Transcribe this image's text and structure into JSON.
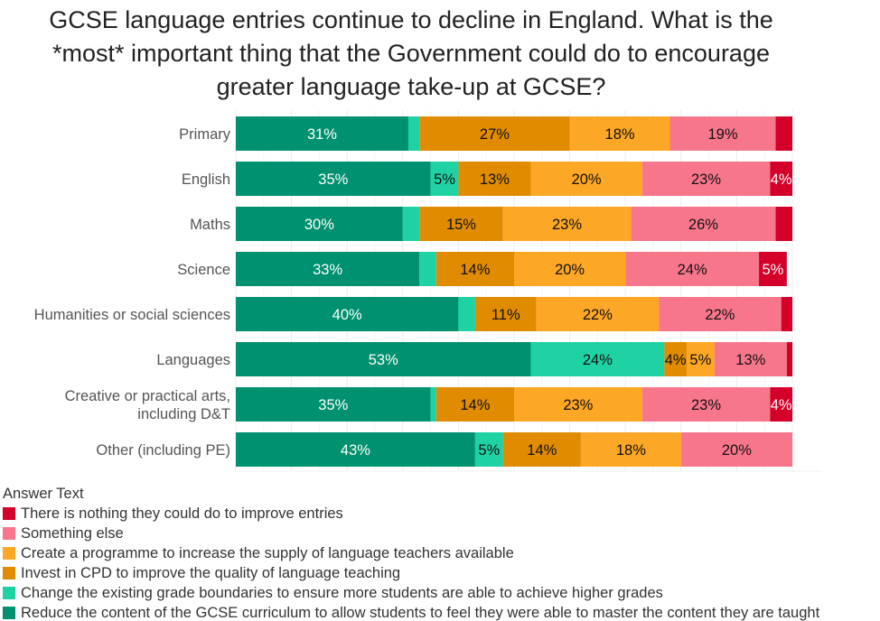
{
  "chart_data": {
    "type": "bar",
    "orientation": "horizontal",
    "stacked": true,
    "title_lines": [
      "GCSE language entries continue to decline in England. What is the",
      "*most* important thing that the Government could do to encourage",
      "greater language take-up at GCSE?"
    ],
    "xlim": [
      0,
      100
    ],
    "grid": true,
    "categories": [
      "Primary",
      "English",
      "Maths",
      "Science",
      "Humanities or social sciences",
      "Languages",
      "Creative or practical arts, including D&T",
      "Other (including PE)"
    ],
    "category_lines": [
      [
        "Primary"
      ],
      [
        "English"
      ],
      [
        "Maths"
      ],
      [
        "Science"
      ],
      [
        "Humanities or social sciences"
      ],
      [
        "Languages"
      ],
      [
        "Creative or practical arts,",
        "including D&T"
      ],
      [
        "Other (including PE)"
      ]
    ],
    "legend_title": "Answer Text",
    "legend_placement": "bottom-left",
    "series": [
      {
        "name": "Reduce the content of the GCSE curriculum to allow students to feel they were able to master the content they are taught",
        "color": "#009170",
        "label_color": "#ffffff",
        "values": [
          31,
          35,
          30,
          33,
          40,
          53,
          35,
          43
        ]
      },
      {
        "name": "Change the existing grade boundaries to ensure more students are able to achieve higher grades",
        "color": "#1fd2a4",
        "label_color": "#111111",
        "values": [
          2,
          5,
          3,
          3,
          3,
          24,
          1,
          5
        ]
      },
      {
        "name": "Invest in CPD to improve the quality of language teaching",
        "color": "#e08b00",
        "label_color": "#111111",
        "values": [
          27,
          13,
          15,
          14,
          11,
          4,
          14,
          14
        ]
      },
      {
        "name": "Create a programme to increase the supply of language teachers available",
        "color": "#fda726",
        "label_color": "#111111",
        "values": [
          18,
          20,
          23,
          20,
          22,
          5,
          23,
          18
        ]
      },
      {
        "name": "Something else",
        "color": "#f8768c",
        "label_color": "#111111",
        "values": [
          19,
          23,
          26,
          24,
          22,
          13,
          23,
          20
        ]
      },
      {
        "name": "There is nothing they could do to improve entries",
        "color": "#d4002a",
        "label_color": "#ffffff",
        "values": [
          3,
          4,
          3,
          5,
          3,
          1,
          4,
          0
        ]
      }
    ],
    "label_min_value": 4
  }
}
